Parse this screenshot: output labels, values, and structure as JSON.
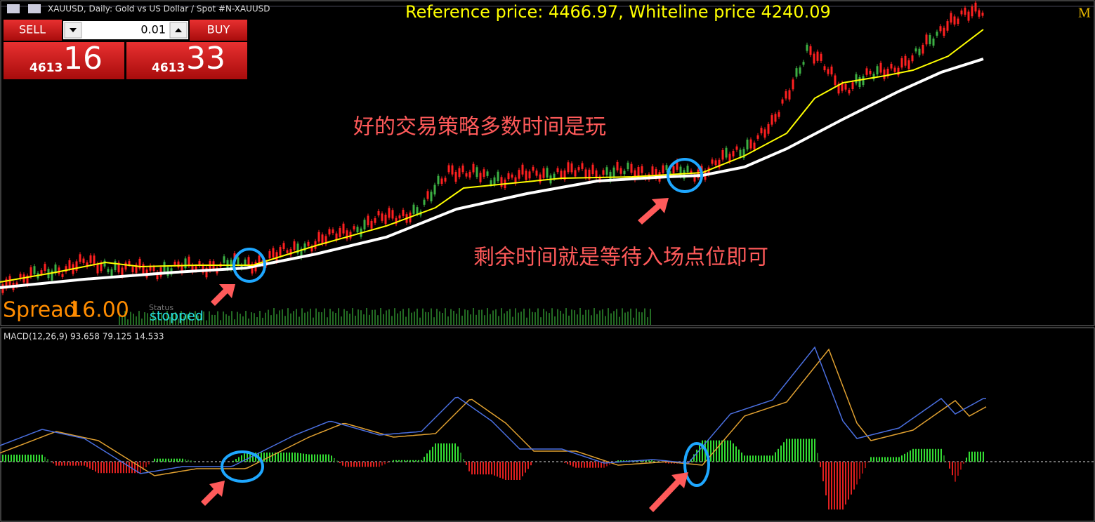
{
  "header": {
    "symbol_title": "XAUUSD, Daily:  Gold vs US Dollar / Spot #N-XAUUSD",
    "reference": "Reference price: 4466.97, Whiteline price 4240.09",
    "corner_mark": "M"
  },
  "trade_panel": {
    "sell": "SELL",
    "lot": "0.01",
    "buy": "BUY",
    "sell_price_prefix": "4613",
    "sell_price_big": "16",
    "buy_price_prefix": "4613",
    "buy_price_big": "33"
  },
  "annotations": [
    "好的交易策略多数时间是玩",
    "剩余时间就是等待入场点位即可"
  ],
  "status": {
    "spread_label": "Spread",
    "spread_value": "16.00",
    "state_label": "Status",
    "state": "stopped"
  },
  "macd": {
    "label": "MACD(12,26,9) 93.658 79.125 14.533"
  }
}
